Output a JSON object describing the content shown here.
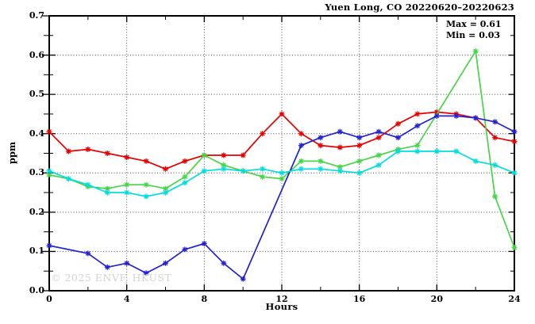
{
  "figure": {
    "watermark": "© 2025 ENVF, HKUST"
  },
  "chart_data": {
    "type": "line",
    "title": "Yuen Long, CO 20220620–20220623",
    "xlabel": "Hours",
    "ylabel": "ppm",
    "xlim": [
      0,
      24
    ],
    "ylim": [
      0.0,
      0.7
    ],
    "x_ticks": [
      0,
      4,
      8,
      12,
      16,
      20,
      24
    ],
    "x_minor_tick_step": 2,
    "y_ticks": [
      0.0,
      0.1,
      0.2,
      0.3,
      0.4,
      0.5,
      0.6,
      0.7
    ],
    "y_minor_tick_step": 0.05,
    "grid": true,
    "legend": "none",
    "annotations": [
      "Max = 0.61",
      "Min = 0.03"
    ],
    "x": [
      0,
      1,
      2,
      3,
      4,
      5,
      6,
      7,
      8,
      9,
      10,
      11,
      12,
      13,
      14,
      15,
      16,
      17,
      18,
      19,
      20,
      21,
      22,
      23,
      24
    ],
    "series": [
      {
        "name": "series-red",
        "color": "#e60000",
        "values": [
          0.405,
          0.355,
          0.36,
          0.35,
          0.34,
          0.33,
          0.31,
          0.33,
          0.345,
          0.345,
          0.345,
          0.4,
          0.45,
          0.4,
          0.37,
          0.365,
          0.37,
          0.39,
          0.425,
          0.45,
          0.455,
          0.45,
          0.44,
          0.39,
          0.38
        ]
      },
      {
        "name": "series-green",
        "color": "#46d546",
        "values": [
          0.295,
          0.285,
          0.265,
          0.26,
          0.27,
          0.27,
          0.26,
          0.29,
          0.345,
          0.32,
          0.305,
          0.29,
          0.285,
          0.33,
          0.33,
          0.315,
          0.33,
          0.345,
          0.36,
          0.37,
          null,
          null,
          0.61,
          0.24,
          0.11
        ]
      },
      {
        "name": "series-blue",
        "color": "#2222d0",
        "values": [
          0.115,
          null,
          0.095,
          0.06,
          0.07,
          0.045,
          0.07,
          0.105,
          0.12,
          0.07,
          0.03,
          null,
          null,
          0.37,
          0.39,
          0.405,
          0.39,
          0.405,
          0.39,
          0.42,
          0.445,
          0.445,
          0.44,
          0.43,
          0.405
        ]
      },
      {
        "name": "series-cyan",
        "color": "#00dede",
        "values": [
          0.305,
          0.285,
          0.27,
          0.25,
          0.25,
          0.24,
          0.25,
          0.275,
          0.305,
          0.31,
          0.305,
          0.31,
          0.3,
          0.31,
          0.31,
          0.305,
          0.3,
          0.32,
          0.355,
          0.355,
          0.355,
          0.355,
          0.33,
          0.32,
          0.3
        ]
      }
    ],
    "stats": {
      "max": 0.61,
      "min": 0.03
    }
  }
}
